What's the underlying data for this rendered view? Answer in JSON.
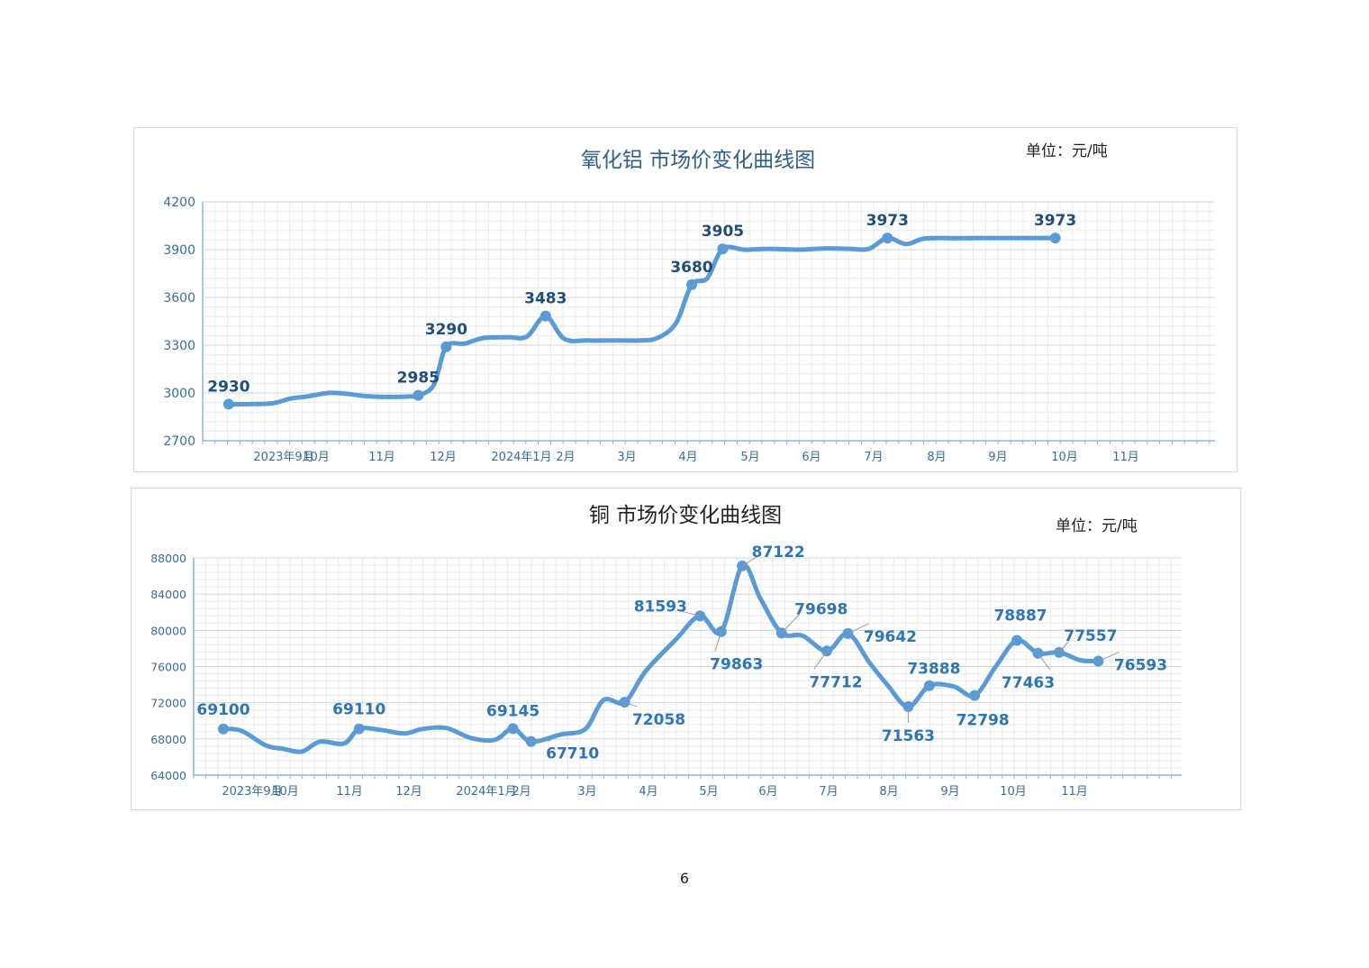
{
  "page": {
    "number": "6"
  },
  "colors": {
    "line": "#5b9bd5",
    "grid_major": "#d4d4d4",
    "grid_minor": "#ececec",
    "axis": "#8fb3d9",
    "axis_text": "#3a6d9a",
    "title_blue": "#2f5f8a",
    "label_dark": "#1f4e79",
    "label_blue": "#2e75b6"
  },
  "chart_data": [
    {
      "type": "line",
      "title": "氧化铝  市场价变化曲线图",
      "unit": "单位：元/吨",
      "x_ticks": [
        "2023年9月",
        "10月",
        "11月",
        "12月",
        "2024年1月",
        "2月",
        "3月",
        "4月",
        "5月",
        "6月",
        "7月",
        "8月",
        "9月",
        "10月",
        "11月"
      ],
      "y_ticks": [
        "4200",
        "3900",
        "3600",
        "3300",
        "3000",
        "2700"
      ],
      "ylim": [
        2700,
        4200
      ],
      "grid": true,
      "legend": "none",
      "series": [
        {
          "values": [
            [
              0.1,
              2930
            ],
            [
              0.4,
              2930
            ],
            [
              0.8,
              2935
            ],
            [
              1.1,
              2965
            ],
            [
              1.4,
              2980
            ],
            [
              1.7,
              3000
            ],
            [
              2.0,
              2995
            ],
            [
              2.3,
              2980
            ],
            [
              2.7,
              2975
            ],
            [
              3.0,
              2978
            ],
            [
              3.15,
              2985
            ],
            [
              3.4,
              3050
            ],
            [
              3.6,
              3290
            ],
            [
              3.9,
              3310
            ],
            [
              4.2,
              3345
            ],
            [
              4.6,
              3350
            ],
            [
              4.9,
              3355
            ],
            [
              5.2,
              3483
            ],
            [
              5.5,
              3340
            ],
            [
              5.9,
              3330
            ],
            [
              6.3,
              3330
            ],
            [
              6.7,
              3330
            ],
            [
              7.0,
              3345
            ],
            [
              7.3,
              3440
            ],
            [
              7.55,
              3680
            ],
            [
              7.8,
              3720
            ],
            [
              8.05,
              3905
            ],
            [
              8.4,
              3900
            ],
            [
              8.8,
              3905
            ],
            [
              9.3,
              3900
            ],
            [
              9.7,
              3908
            ],
            [
              10.1,
              3905
            ],
            [
              10.4,
              3905
            ],
            [
              10.7,
              3973
            ],
            [
              11.0,
              3935
            ],
            [
              11.3,
              3970
            ],
            [
              11.8,
              3972
            ],
            [
              12.5,
              3973
            ],
            [
              13.2,
              3973
            ],
            [
              13.4,
              3973
            ]
          ],
          "points": [
            [
              0.1,
              2930
            ],
            [
              3.15,
              2985
            ],
            [
              3.6,
              3290
            ],
            [
              5.2,
              3483
            ],
            [
              7.55,
              3680
            ],
            [
              8.05,
              3905
            ],
            [
              10.7,
              3973
            ],
            [
              13.4,
              3973
            ]
          ],
          "labels": [
            {
              "x": 0.1,
              "y": 2930,
              "text": "2930",
              "dx": 0,
              "dy": -20
            },
            {
              "x": 3.15,
              "y": 2985,
              "text": "2985",
              "dx": 0,
              "dy": -20
            },
            {
              "x": 3.6,
              "y": 3290,
              "text": "3290",
              "dx": 0,
              "dy": -20
            },
            {
              "x": 5.2,
              "y": 3483,
              "text": "3483",
              "dx": 0,
              "dy": -20
            },
            {
              "x": 7.55,
              "y": 3680,
              "text": "3680",
              "dx": 0,
              "dy": -20
            },
            {
              "x": 8.05,
              "y": 3905,
              "text": "3905",
              "dx": 0,
              "dy": -20
            },
            {
              "x": 10.7,
              "y": 3973,
              "text": "3973",
              "dx": 0,
              "dy": -20
            },
            {
              "x": 13.4,
              "y": 3973,
              "text": "3973",
              "dx": 0,
              "dy": -20
            }
          ]
        }
      ]
    },
    {
      "type": "line",
      "title": "铜  市场价变化曲线图",
      "unit": "单位：元/吨",
      "x_ticks": [
        "2023年9月",
        "10月",
        "11月",
        "12月",
        "2024年1月",
        "2月",
        "3月",
        "4月",
        "5月",
        "6月",
        "7月",
        "8月",
        "9月",
        "10月",
        "11月"
      ],
      "y_ticks": [
        "88000",
        "84000",
        "80000",
        "76000",
        "72000",
        "68000",
        "64000"
      ],
      "ylim": [
        64000,
        88000
      ],
      "grid": true,
      "legend": "none",
      "series": [
        {
          "values": [
            [
              0,
              69100
            ],
            [
              0.3,
              68900
            ],
            [
              0.7,
              67300
            ],
            [
              1.0,
              66900
            ],
            [
              1.3,
              66600
            ],
            [
              1.6,
              67700
            ],
            [
              2.0,
              67500
            ],
            [
              2.25,
              69110
            ],
            [
              2.6,
              69000
            ],
            [
              3.0,
              68600
            ],
            [
              3.3,
              69100
            ],
            [
              3.7,
              69200
            ],
            [
              4.1,
              68100
            ],
            [
              4.5,
              67900
            ],
            [
              4.8,
              69145
            ],
            [
              5.1,
              67710
            ],
            [
              5.6,
              68500
            ],
            [
              6.0,
              69100
            ],
            [
              6.3,
              72300
            ],
            [
              6.65,
              72058
            ],
            [
              7.0,
              75500
            ],
            [
              7.5,
              79000
            ],
            [
              7.9,
              81593
            ],
            [
              8.25,
              79863
            ],
            [
              8.6,
              87122
            ],
            [
              8.9,
              83500
            ],
            [
              9.25,
              79698
            ],
            [
              9.6,
              79400
            ],
            [
              10.0,
              77712
            ],
            [
              10.35,
              79642
            ],
            [
              10.7,
              76500
            ],
            [
              11.0,
              74000
            ],
            [
              11.35,
              71563
            ],
            [
              11.7,
              73888
            ],
            [
              12.1,
              73800
            ],
            [
              12.45,
              72798
            ],
            [
              12.8,
              76000
            ],
            [
              13.15,
              78887
            ],
            [
              13.5,
              77463
            ],
            [
              13.85,
              77557
            ],
            [
              14.2,
              76700
            ],
            [
              14.5,
              76593
            ]
          ],
          "points": [
            [
              0,
              69100
            ],
            [
              2.25,
              69110
            ],
            [
              4.8,
              69145
            ],
            [
              5.1,
              67710
            ],
            [
              6.65,
              72058
            ],
            [
              7.9,
              81593
            ],
            [
              8.25,
              79863
            ],
            [
              8.6,
              87122
            ],
            [
              9.25,
              79698
            ],
            [
              10.0,
              77712
            ],
            [
              10.35,
              79642
            ],
            [
              11.35,
              71563
            ],
            [
              11.7,
              73888
            ],
            [
              12.45,
              72798
            ],
            [
              13.15,
              78887
            ],
            [
              13.5,
              77463
            ],
            [
              13.85,
              77557
            ],
            [
              14.5,
              76593
            ]
          ],
          "labels": [
            {
              "x": 0,
              "y": 69100,
              "text": "69100",
              "dx": 0,
              "dy": -22
            },
            {
              "x": 2.25,
              "y": 69110,
              "text": "69110",
              "dx": 0,
              "dy": -22
            },
            {
              "x": 4.8,
              "y": 69145,
              "text": "69145",
              "dx": 0,
              "dy": -20
            },
            {
              "x": 5.1,
              "y": 67710,
              "text": "67710",
              "dx": 46,
              "dy": 13
            },
            {
              "x": 6.65,
              "y": 72058,
              "text": "72058",
              "dx": 38,
              "dy": 19
            },
            {
              "x": 7.9,
              "y": 81593,
              "text": "81593",
              "dx": -44,
              "dy": -11
            },
            {
              "x": 8.25,
              "y": 79863,
              "text": "79863",
              "dx": 17,
              "dy": 36
            },
            {
              "x": 8.6,
              "y": 87122,
              "text": "87122",
              "dx": 40,
              "dy": -16
            },
            {
              "x": 9.25,
              "y": 79698,
              "text": "79698",
              "dx": 44,
              "dy": -27
            },
            {
              "x": 10.0,
              "y": 77712,
              "text": "77712",
              "dx": 10,
              "dy": 34
            },
            {
              "x": 10.35,
              "y": 79642,
              "text": "79642",
              "dx": 47,
              "dy": 3
            },
            {
              "x": 11.35,
              "y": 71563,
              "text": "71563",
              "dx": 0,
              "dy": 32
            },
            {
              "x": 11.7,
              "y": 73888,
              "text": "73888",
              "dx": 5,
              "dy": -19
            },
            {
              "x": 12.45,
              "y": 72798,
              "text": "72798",
              "dx": 9,
              "dy": 27
            },
            {
              "x": 13.15,
              "y": 78887,
              "text": "78887",
              "dx": 4,
              "dy": -28
            },
            {
              "x": 13.5,
              "y": 77463,
              "text": "77463",
              "dx": -11,
              "dy": 32
            },
            {
              "x": 13.85,
              "y": 77557,
              "text": "77557",
              "dx": 35,
              "dy": -19
            },
            {
              "x": 14.5,
              "y": 76593,
              "text": "76593",
              "dx": 47,
              "dy": 4
            }
          ]
        }
      ]
    }
  ]
}
